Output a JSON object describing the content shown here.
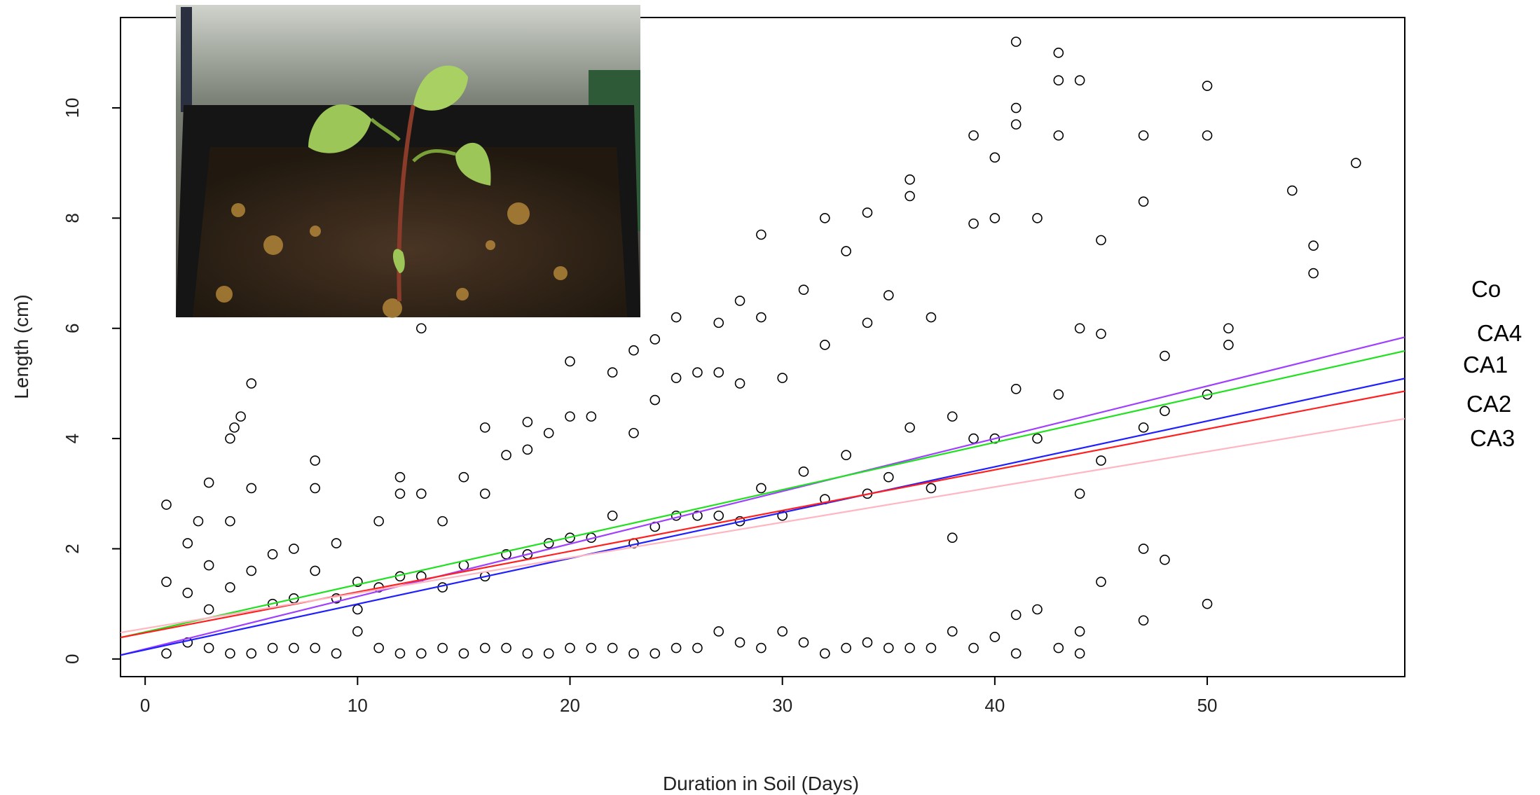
{
  "chart_data": {
    "type": "scatter",
    "x_label": "Duration in Soil (Days)",
    "y_label": "Length (cm)",
    "xlim": [
      -1.16,
      59.3
    ],
    "ylim": [
      -0.32,
      11.64
    ],
    "xticks": [
      0,
      10,
      20,
      30,
      40,
      50
    ],
    "yticks": [
      0,
      2,
      4,
      6,
      8,
      10
    ],
    "points": {
      "color": "#000000",
      "x": [
        1,
        1,
        1,
        2,
        2,
        2,
        3,
        3,
        3,
        4,
        4,
        4,
        5,
        5,
        5,
        6,
        6,
        6,
        7,
        7,
        7,
        8,
        8,
        8,
        9,
        9,
        9,
        10,
        10,
        10,
        11,
        11,
        11,
        12,
        12,
        12,
        13,
        13,
        13,
        14,
        14,
        14,
        15,
        15,
        15,
        16,
        16,
        16,
        17,
        17,
        17,
        18,
        18,
        18,
        19,
        19,
        19,
        20,
        20,
        20,
        21,
        21,
        21,
        22,
        22,
        22,
        23,
        23,
        23,
        24,
        24,
        24,
        25,
        25,
        25,
        26,
        26,
        26,
        27,
        27,
        27,
        28,
        28,
        28,
        29,
        29,
        29,
        30,
        30,
        30,
        31,
        31,
        31,
        32,
        32,
        32,
        33,
        33,
        33,
        34,
        34,
        34,
        35,
        35,
        35,
        36,
        36,
        36,
        37,
        37,
        37,
        38,
        38,
        38,
        39,
        39,
        39,
        40,
        40,
        40,
        41,
        41,
        41,
        42,
        42,
        42,
        43,
        43,
        43,
        44,
        44,
        44,
        45,
        45,
        45,
        47,
        47,
        47,
        48,
        48,
        48,
        50,
        50,
        50,
        2.5,
        3,
        4,
        4.2,
        4.5,
        5,
        8,
        12,
        13,
        16,
        18,
        20,
        23,
        24,
        25,
        27,
        28,
        29,
        32,
        34,
        36,
        39,
        40,
        41,
        41,
        43,
        43,
        44,
        45,
        47,
        47,
        41,
        44,
        50,
        51,
        51,
        54,
        55,
        55,
        57
      ],
      "values": [
        0.1,
        1.4,
        2.8,
        0.3,
        1.2,
        2.1,
        0.2,
        0.9,
        1.7,
        0.1,
        1.3,
        2.5,
        0.1,
        1.6,
        3.1,
        0.2,
        1.0,
        1.9,
        0.2,
        1.1,
        2.0,
        0.2,
        1.6,
        3.1,
        0.1,
        1.1,
        2.1,
        0.5,
        0.9,
        1.4,
        0.2,
        1.3,
        2.5,
        0.1,
        1.5,
        3.0,
        0.1,
        1.5,
        3.0,
        0.2,
        1.3,
        2.5,
        0.1,
        1.7,
        3.3,
        0.2,
        1.5,
        3.0,
        0.2,
        1.9,
        3.7,
        0.1,
        1.9,
        3.8,
        0.1,
        2.1,
        4.1,
        0.2,
        2.2,
        4.4,
        0.2,
        2.2,
        4.4,
        0.2,
        2.6,
        5.2,
        0.1,
        2.1,
        4.1,
        0.1,
        2.4,
        4.7,
        0.2,
        2.6,
        5.1,
        0.2,
        2.6,
        5.2,
        0.5,
        2.6,
        5.2,
        0.3,
        2.5,
        5.0,
        0.2,
        3.1,
        6.2,
        0.5,
        2.6,
        5.1,
        0.3,
        3.4,
        6.7,
        0.1,
        2.9,
        5.7,
        0.2,
        3.7,
        7.4,
        0.3,
        3.0,
        6.1,
        0.2,
        3.3,
        6.6,
        0.2,
        4.2,
        8.4,
        0.2,
        3.1,
        6.2,
        0.5,
        2.2,
        4.4,
        0.2,
        4.0,
        7.9,
        0.4,
        4.0,
        8.0,
        0.8,
        4.9,
        9.7,
        0.9,
        4.0,
        8.0,
        0.2,
        4.8,
        9.5,
        0.5,
        3.0,
        6.0,
        1.4,
        3.6,
        5.9,
        2.0,
        4.2,
        8.3,
        1.8,
        4.5,
        5.5,
        1.0,
        4.8,
        9.5,
        2.5,
        3.2,
        4.0,
        4.2,
        4.4,
        5.0,
        3.6,
        3.3,
        6.0,
        4.2,
        4.3,
        5.4,
        5.6,
        5.8,
        6.2,
        6.1,
        6.5,
        7.7,
        8.0,
        8.1,
        8.7,
        9.5,
        9.1,
        11.2,
        10.0,
        11.0,
        10.5,
        10.5,
        7.6,
        9.5,
        0.7,
        0.1,
        0.1,
        10.4,
        6.0,
        5.7,
        8.5,
        7.5,
        7.0,
        9.0
      ]
    },
    "series": [
      {
        "name": "Co",
        "color": "#a040ff",
        "x": [
          -1.16,
          59.3
        ],
        "values": [
          0.07,
          5.84
        ]
      },
      {
        "name": "CA4",
        "color": "#20e020",
        "x": [
          -1.16,
          59.3
        ],
        "values": [
          0.39,
          5.59
        ]
      },
      {
        "name": "CA1",
        "color": "#2020ff",
        "x": [
          -1.16,
          59.3
        ],
        "values": [
          0.07,
          5.09
        ]
      },
      {
        "name": "CA2",
        "color": "#ff2020",
        "x": [
          -1.16,
          59.3
        ],
        "values": [
          0.39,
          4.86
        ]
      },
      {
        "name": "CA3",
        "color": "#ffb6c1",
        "x": [
          -1.16,
          59.3
        ],
        "values": [
          0.48,
          4.36
        ]
      }
    ]
  }
}
